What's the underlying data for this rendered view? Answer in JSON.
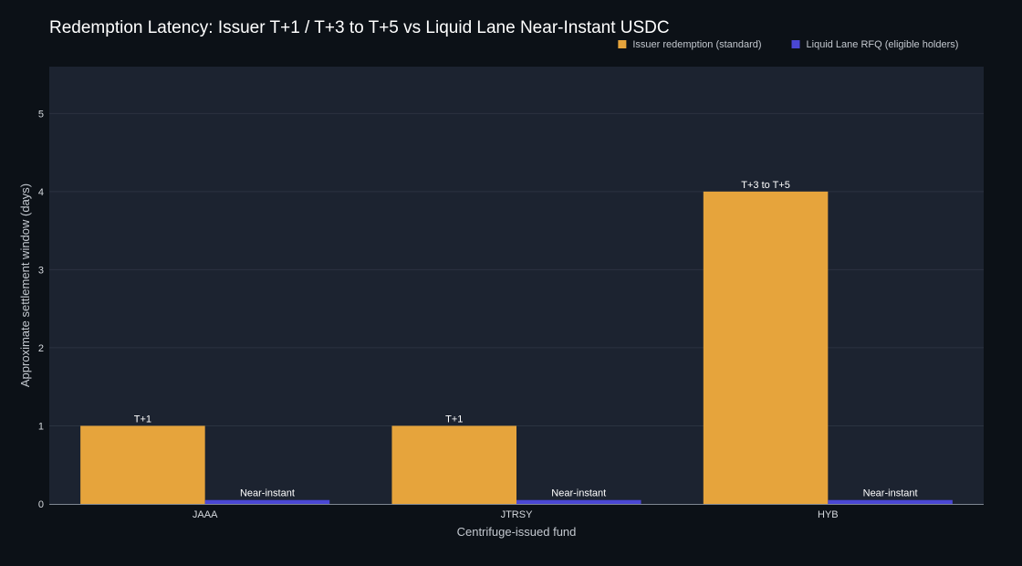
{
  "colors": {
    "page_background": "#0c1117",
    "plot_background": "#1c2330",
    "gridline": "#2b3340",
    "axis_line": "#7f8792",
    "title_text": "#ffffff",
    "axis_text": "#c3c8cf",
    "tick_text": "#d4d8dd",
    "bar_label_text": "#ffffff"
  },
  "legend": {
    "placement": "top-right",
    "items": [
      {
        "label": "Issuer redemption (standard)",
        "color": "#e6a43c"
      },
      {
        "label": "Liquid Lane RFQ (eligible holders)",
        "color": "#4a47d4"
      }
    ]
  },
  "chart_data": {
    "type": "bar",
    "title": "Redemption Latency: Issuer T+1 / T+3 to T+5 vs Liquid Lane Near-Instant USDC",
    "xlabel": "Centrifuge-issued fund",
    "ylabel": "Approximate settlement window (days)",
    "categories": [
      "JAAA",
      "JTRSY",
      "HYB"
    ],
    "ylim": [
      0,
      5.6
    ],
    "yticks": [
      0,
      1,
      2,
      3,
      4,
      5
    ],
    "grid": true,
    "series": [
      {
        "name": "Issuer redemption (standard)",
        "color": "#e6a43c",
        "values": [
          1,
          1,
          4
        ],
        "labels": [
          "T+1",
          "T+1",
          "T+3 to T+5"
        ]
      },
      {
        "name": "Liquid Lane RFQ (eligible holders)",
        "color": "#4a47d4",
        "values": [
          0.05,
          0.05,
          0.05
        ],
        "labels": [
          "Near-instant",
          "Near-instant",
          "Near-instant"
        ]
      }
    ]
  }
}
